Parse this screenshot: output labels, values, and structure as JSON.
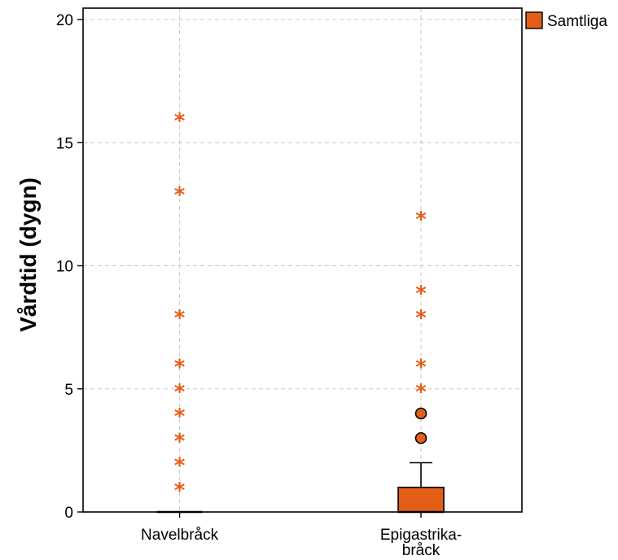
{
  "chart_data": {
    "type": "boxplot",
    "title": "",
    "xlabel": "",
    "ylabel": "Vårdtid (dygn)",
    "ylim": [
      0,
      20
    ],
    "yticks": [
      0,
      5,
      10,
      15,
      20
    ],
    "grid": true,
    "legend_position": "top-right, outside plot",
    "categories": [
      {
        "label_lines": [
          "Navelbråck"
        ]
      },
      {
        "label_lines": [
          "Epigastrika-",
          "bråck"
        ]
      }
    ],
    "series": [
      {
        "name": "Samtliga",
        "color": "#e35e16",
        "boxes": [
          {
            "category": "Navelbråck",
            "min": 0,
            "q1": 0,
            "median": 0,
            "q3": 0,
            "max": 0,
            "outliers": [],
            "extremes": [
              1,
              2,
              3,
              4,
              5,
              6,
              8,
              13,
              16
            ]
          },
          {
            "category": "Epigastrika-bråck",
            "min": 0,
            "q1": 0,
            "median": 0,
            "q3": 1,
            "max": 2,
            "outliers": [
              3,
              4
            ],
            "extremes": [
              5,
              6,
              8,
              9,
              12
            ]
          }
        ]
      }
    ]
  }
}
